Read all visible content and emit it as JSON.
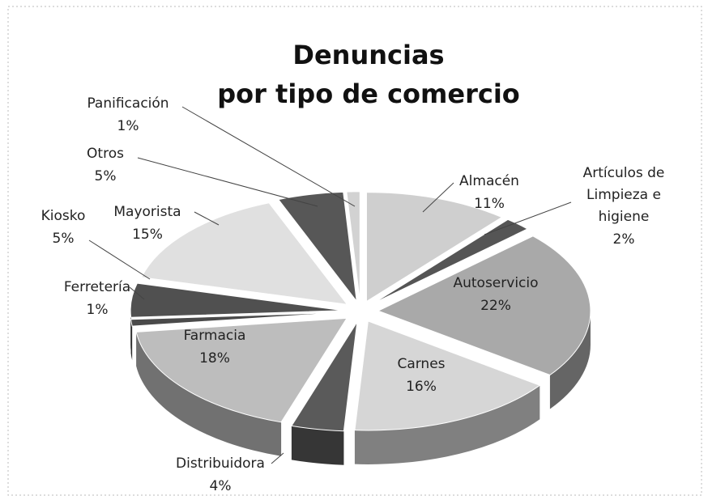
{
  "chart_data": {
    "type": "pie",
    "title": "Denuncias por tipo de comercio",
    "categories": [
      "Almacén",
      "Artículos de Limpieza e higiene",
      "Autoservicio",
      "Carnes",
      "Distribuidora",
      "Farmacia",
      "Ferretería",
      "Kiosko",
      "Mayorista",
      "Otros",
      "Panificación"
    ],
    "values": [
      11,
      2,
      22,
      16,
      4,
      18,
      1,
      5,
      15,
      5,
      1
    ],
    "value_labels": [
      "11%",
      "2%",
      "22%",
      "16%",
      "4%",
      "18%",
      "1%",
      "5%",
      "15%",
      "5%",
      "1%"
    ],
    "colors": [
      "#cfcfcf",
      "#555555",
      "#a9a9a9",
      "#d6d6d6",
      "#5a5a5a",
      "#bdbdbd",
      "#4a4a4a",
      "#505050",
      "#e0e0e0",
      "#575757",
      "#d2d2d2"
    ]
  }
}
